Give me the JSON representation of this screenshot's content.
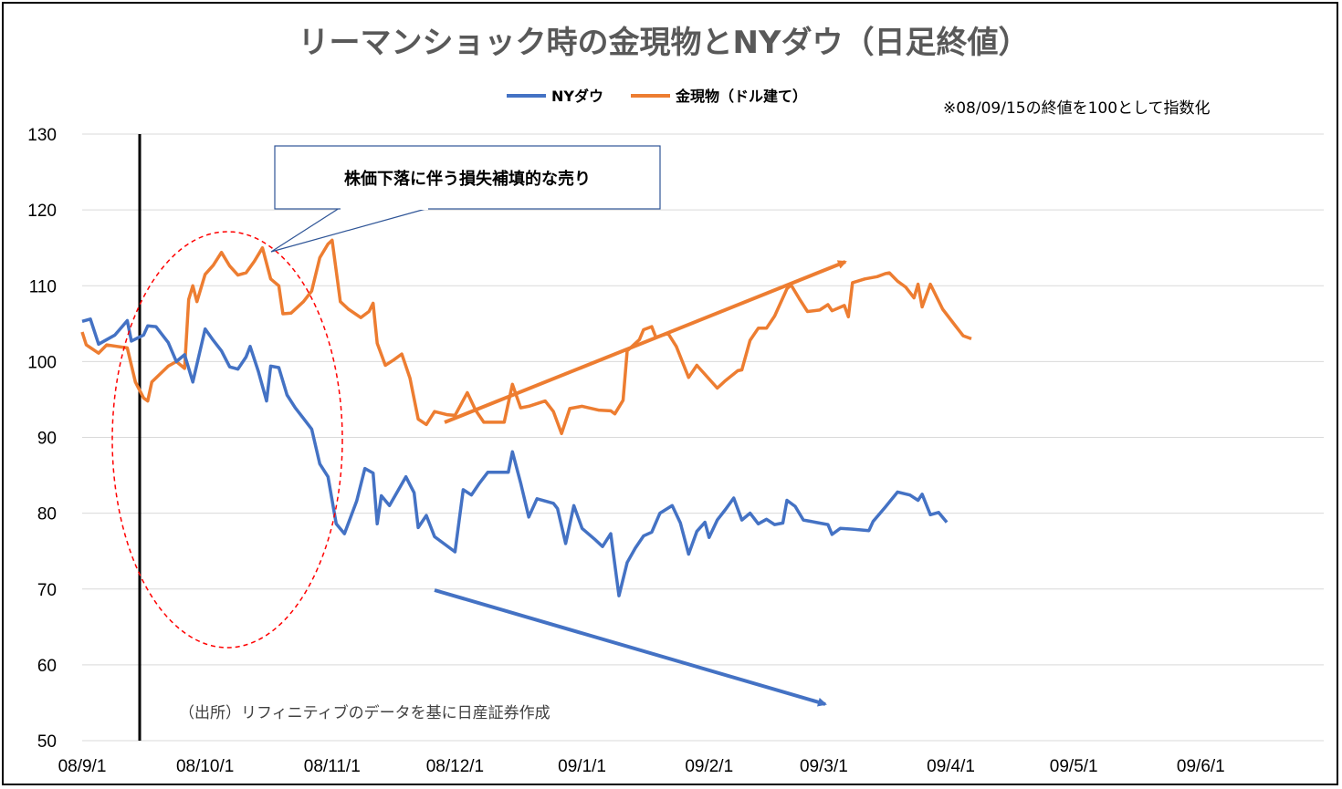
{
  "chart_data": {
    "type": "line",
    "title": "リーマンショック時の金現物とNYダウ（日足終値）",
    "note": "※08/09/15の終値を100として指数化",
    "source": "（出所）リフィニティブのデータを基に日産証券作成",
    "annotation": "株価下落に伴う損失補填的な売り",
    "ylim": [
      50,
      130
    ],
    "yticks": [
      "130",
      "120",
      "110",
      "100",
      "90",
      "80",
      "70",
      "60",
      "50"
    ],
    "xticks": [
      "08/9/1",
      "08/10/1",
      "08/11/1",
      "08/12/1",
      "09/1/1",
      "09/2/1",
      "09/3/1",
      "09/4/1",
      "09/5/1",
      "09/6/1"
    ],
    "vline_date": "08/09/15",
    "legend": {
      "position": "top"
    },
    "colors": {
      "dow": "#4472C4",
      "gold": "#ED7D31",
      "callout_border": "#2F5597",
      "ellipse": "#FF0000"
    },
    "series": [
      {
        "name": "NYダウ",
        "key": "dow",
        "points": [
          [
            "2008-09-01",
            105.3
          ],
          [
            "2008-09-03",
            105.6
          ],
          [
            "2008-09-05",
            102.3
          ],
          [
            "2008-09-09",
            103.5
          ],
          [
            "2008-09-12",
            105.4
          ],
          [
            "2008-09-13",
            102.7
          ],
          [
            "2008-09-16",
            103.5
          ],
          [
            "2008-09-17",
            104.7
          ],
          [
            "2008-09-19",
            104.6
          ],
          [
            "2008-09-22",
            102.5
          ],
          [
            "2008-09-24",
            100.0
          ],
          [
            "2008-09-26",
            100.9
          ],
          [
            "2008-09-28",
            97.3
          ],
          [
            "2008-10-01",
            104.3
          ],
          [
            "2008-10-03",
            102.8
          ],
          [
            "2008-10-05",
            101.4
          ],
          [
            "2008-10-07",
            99.3
          ],
          [
            "2008-10-09",
            99.0
          ],
          [
            "2008-10-11",
            100.6
          ],
          [
            "2008-10-12",
            102.0
          ],
          [
            "2008-10-14",
            98.7
          ],
          [
            "2008-10-16",
            94.8
          ],
          [
            "2008-10-17",
            99.4
          ],
          [
            "2008-10-19",
            99.2
          ],
          [
            "2008-10-21",
            95.6
          ],
          [
            "2008-10-23",
            93.9
          ],
          [
            "2008-10-25",
            92.5
          ],
          [
            "2008-10-27",
            91.1
          ],
          [
            "2008-10-29",
            86.5
          ],
          [
            "2008-10-31",
            84.8
          ],
          [
            "2008-11-02",
            78.6
          ],
          [
            "2008-11-04",
            77.3
          ],
          [
            "2008-11-07",
            81.6
          ],
          [
            "2008-11-09",
            85.9
          ],
          [
            "2008-11-11",
            85.3
          ],
          [
            "2008-11-12",
            78.6
          ],
          [
            "2008-11-13",
            82.3
          ],
          [
            "2008-11-15",
            81.0
          ],
          [
            "2008-11-19",
            84.8
          ],
          [
            "2008-11-21",
            82.7
          ],
          [
            "2008-11-22",
            78.1
          ],
          [
            "2008-11-24",
            79.7
          ],
          [
            "2008-11-26",
            76.9
          ],
          [
            "2008-11-29",
            75.7
          ],
          [
            "2008-12-01",
            74.9
          ],
          [
            "2008-12-03",
            83.1
          ],
          [
            "2008-12-05",
            82.4
          ],
          [
            "2008-12-07",
            84.0
          ],
          [
            "2008-12-09",
            85.4
          ],
          [
            "2008-12-12",
            85.4
          ],
          [
            "2008-12-14",
            85.4
          ],
          [
            "2008-12-15",
            88.1
          ],
          [
            "2008-12-17",
            84.0
          ],
          [
            "2008-12-19",
            79.5
          ],
          [
            "2008-12-21",
            81.9
          ],
          [
            "2008-12-25",
            81.3
          ],
          [
            "2008-12-26",
            80.6
          ],
          [
            "2008-12-28",
            76.0
          ],
          [
            "2008-12-30",
            81.0
          ],
          [
            "2009-01-01",
            78.0
          ],
          [
            "2009-01-04",
            76.6
          ],
          [
            "2009-01-06",
            75.6
          ],
          [
            "2009-01-08",
            77.3
          ],
          [
            "2009-01-10",
            69.1
          ],
          [
            "2009-01-12",
            73.5
          ],
          [
            "2009-01-14",
            75.4
          ],
          [
            "2009-01-16",
            77.0
          ],
          [
            "2009-01-18",
            77.5
          ],
          [
            "2009-01-20",
            80.0
          ],
          [
            "2009-01-23",
            81.0
          ],
          [
            "2009-01-25",
            78.7
          ],
          [
            "2009-01-27",
            74.6
          ],
          [
            "2009-01-29",
            77.6
          ],
          [
            "2009-01-31",
            78.8
          ],
          [
            "2009-01-32",
            76.8
          ],
          [
            "2009-01-34",
            79.1
          ],
          [
            "2009-01-36",
            80.5
          ],
          [
            "2009-01-38",
            82.0
          ],
          [
            "2009-01-40",
            79.1
          ],
          [
            "2009-01-42",
            80.0
          ],
          [
            "2009-01-44",
            78.6
          ],
          [
            "2009-01-46",
            79.2
          ],
          [
            "2009-01-48",
            78.5
          ],
          [
            "2009-01-50",
            78.7
          ],
          [
            "2009-01-51",
            81.7
          ],
          [
            "2009-01-53",
            80.9
          ],
          [
            "2009-01-55",
            79.1
          ],
          [
            "2009-01-58",
            78.8
          ],
          [
            "2009-01-61",
            78.5
          ],
          [
            "2009-01-62",
            77.2
          ],
          [
            "2009-01-64",
            78.0
          ],
          [
            "2009-01-67",
            77.9
          ],
          [
            "2009-01-71",
            77.7
          ],
          [
            "2009-01-72",
            78.9
          ],
          [
            "2009-01-75",
            80.8
          ],
          [
            "2009-01-78",
            82.8
          ],
          [
            "2009-01-81",
            82.4
          ],
          [
            "2009-01-83",
            81.7
          ],
          [
            "2009-01-84",
            82.5
          ],
          [
            "2009-01-86",
            79.8
          ],
          [
            "2009-01-88",
            80.1
          ],
          [
            "2009-01-90",
            78.8
          ]
        ]
      },
      {
        "name": "金現物（ドル建て）",
        "key": "gold",
        "points": [
          [
            "2008-09-01",
            103.9
          ],
          [
            "2008-09-02",
            102.2
          ],
          [
            "2008-09-05",
            101.1
          ],
          [
            "2008-09-07",
            102.2
          ],
          [
            "2008-09-12",
            101.8
          ],
          [
            "2008-09-14",
            97.3
          ],
          [
            "2008-09-16",
            95.2
          ],
          [
            "2008-09-17",
            94.8
          ],
          [
            "2008-09-18",
            97.3
          ],
          [
            "2008-09-22",
            99.4
          ],
          [
            "2008-09-24",
            100.0
          ],
          [
            "2008-09-26",
            99.1
          ],
          [
            "2008-09-27",
            108.2
          ],
          [
            "2008-09-28",
            110.0
          ],
          [
            "2008-09-29",
            107.9
          ],
          [
            "2008-10-01",
            111.5
          ],
          [
            "2008-10-03",
            112.7
          ],
          [
            "2008-10-05",
            114.4
          ],
          [
            "2008-10-07",
            112.6
          ],
          [
            "2008-10-09",
            111.4
          ],
          [
            "2008-10-11",
            111.7
          ],
          [
            "2008-10-13",
            113.2
          ],
          [
            "2008-10-15",
            115.0
          ],
          [
            "2008-10-17",
            110.9
          ],
          [
            "2008-10-19",
            110.0
          ],
          [
            "2008-10-20",
            106.3
          ],
          [
            "2008-10-22",
            106.4
          ],
          [
            "2008-10-25",
            107.9
          ],
          [
            "2008-10-27",
            109.3
          ],
          [
            "2008-10-29",
            113.7
          ],
          [
            "2008-10-31",
            115.5
          ],
          [
            "2008-11-01",
            116.0
          ],
          [
            "2008-11-03",
            107.9
          ],
          [
            "2008-11-05",
            106.9
          ],
          [
            "2008-11-08",
            105.8
          ],
          [
            "2008-11-10",
            106.6
          ],
          [
            "2008-11-11",
            107.7
          ],
          [
            "2008-11-12",
            102.4
          ],
          [
            "2008-11-14",
            99.5
          ],
          [
            "2008-11-16",
            100.2
          ],
          [
            "2008-11-18",
            101.0
          ],
          [
            "2008-11-20",
            97.8
          ],
          [
            "2008-11-22",
            92.4
          ],
          [
            "2008-11-24",
            91.7
          ],
          [
            "2008-11-26",
            93.4
          ],
          [
            "2008-11-29",
            93.0
          ],
          [
            "2008-12-01",
            92.9
          ],
          [
            "2008-12-04",
            95.9
          ],
          [
            "2008-12-06",
            93.6
          ],
          [
            "2008-12-08",
            92.0
          ],
          [
            "2008-12-13",
            92.0
          ],
          [
            "2008-12-15",
            97.0
          ],
          [
            "2008-12-17",
            93.9
          ],
          [
            "2008-12-19",
            94.1
          ],
          [
            "2008-12-23",
            94.8
          ],
          [
            "2008-12-25",
            93.4
          ],
          [
            "2008-12-27",
            90.5
          ],
          [
            "2008-12-29",
            93.8
          ],
          [
            "2009-01-01",
            94.1
          ],
          [
            "2009-01-05",
            93.6
          ],
          [
            "2009-01-08",
            93.5
          ],
          [
            "2009-01-09",
            93.1
          ],
          [
            "2009-01-11",
            94.9
          ],
          [
            "2009-01-12",
            101.4
          ],
          [
            "2009-01-15",
            102.9
          ],
          [
            "2009-01-16",
            104.2
          ],
          [
            "2009-01-18",
            104.6
          ],
          [
            "2009-01-19",
            103.2
          ],
          [
            "2009-01-22",
            103.7
          ],
          [
            "2009-01-24",
            102.0
          ],
          [
            "2009-01-27",
            97.9
          ],
          [
            "2009-01-29",
            99.5
          ],
          [
            "2009-01-34",
            96.5
          ],
          [
            "2009-01-36",
            97.5
          ],
          [
            "2009-01-39",
            98.8
          ],
          [
            "2009-01-40",
            98.9
          ],
          [
            "2009-01-42",
            102.8
          ],
          [
            "2009-01-44",
            104.4
          ],
          [
            "2009-01-46",
            104.4
          ],
          [
            "2009-01-48",
            106.0
          ],
          [
            "2009-01-51",
            109.6
          ],
          [
            "2009-01-52",
            110.1
          ],
          [
            "2009-01-54",
            108.3
          ],
          [
            "2009-01-56",
            106.6
          ],
          [
            "2009-01-59",
            106.8
          ],
          [
            "2009-01-61",
            107.5
          ],
          [
            "2009-01-62",
            106.7
          ],
          [
            "2009-01-65",
            107.4
          ],
          [
            "2009-01-66",
            105.9
          ],
          [
            "2009-01-67",
            110.4
          ],
          [
            "2009-01-70",
            110.9
          ],
          [
            "2009-01-73",
            111.2
          ],
          [
            "2009-01-75",
            111.6
          ],
          [
            "2009-01-76",
            111.7
          ],
          [
            "2009-01-78",
            110.6
          ],
          [
            "2009-01-80",
            109.8
          ],
          [
            "2009-01-82",
            108.4
          ],
          [
            "2009-01-83",
            110.2
          ],
          [
            "2009-01-84",
            107.2
          ],
          [
            "2009-01-86",
            110.2
          ],
          [
            "2009-01-89",
            106.9
          ],
          [
            "2009-01-92",
            104.8
          ],
          [
            "2009-01-94",
            103.4
          ],
          [
            "2009-01-96",
            103.0
          ]
        ]
      }
    ]
  }
}
